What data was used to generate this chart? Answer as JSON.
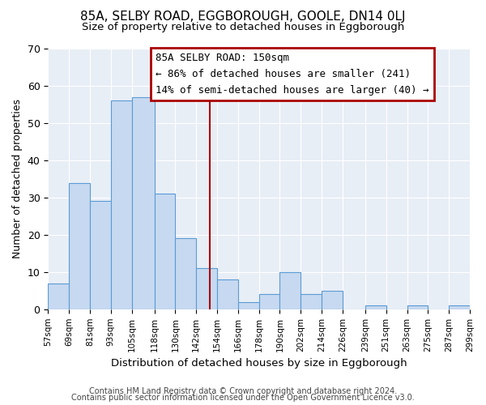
{
  "title1": "85A, SELBY ROAD, EGGBOROUGH, GOOLE, DN14 0LJ",
  "title2": "Size of property relative to detached houses in Eggborough",
  "xlabel": "Distribution of detached houses by size in Eggborough",
  "ylabel": "Number of detached properties",
  "bin_labels": [
    "57sqm",
    "69sqm",
    "81sqm",
    "93sqm",
    "105sqm",
    "118sqm",
    "130sqm",
    "142sqm",
    "154sqm",
    "166sqm",
    "178sqm",
    "190sqm",
    "202sqm",
    "214sqm",
    "226sqm",
    "239sqm",
    "251sqm",
    "263sqm",
    "275sqm",
    "287sqm",
    "299sqm"
  ],
  "bar_heights": [
    7,
    34,
    29,
    56,
    57,
    31,
    19,
    11,
    8,
    2,
    4,
    10,
    4,
    5,
    0,
    1,
    0,
    1,
    0,
    1
  ],
  "bar_color": "#c6d9f0",
  "bar_edge_color": "#5b9bd5",
  "marker_label": "85A SELBY ROAD: 150sqm",
  "annotation_line1": "← 86% of detached houses are smaller (241)",
  "annotation_line2": "14% of semi-detached houses are larger (40) →",
  "annotation_box_color": "#ffffff",
  "annotation_box_edge": "#aa0000",
  "vline_color": "#aa0000",
  "ylim": [
    0,
    70
  ],
  "yticks": [
    0,
    10,
    20,
    30,
    40,
    50,
    60,
    70
  ],
  "footer1": "Contains HM Land Registry data © Crown copyright and database right 2024.",
  "footer2": "Contains public sector information licensed under the Open Government Licence v3.0.",
  "bin_edges": [
    57,
    69,
    81,
    93,
    105,
    118,
    130,
    142,
    154,
    166,
    178,
    190,
    202,
    214,
    226,
    239,
    251,
    263,
    275,
    287,
    299
  ],
  "plot_bg_color": "#e8eef6",
  "grid_color": "#ffffff",
  "vline_x": 150
}
